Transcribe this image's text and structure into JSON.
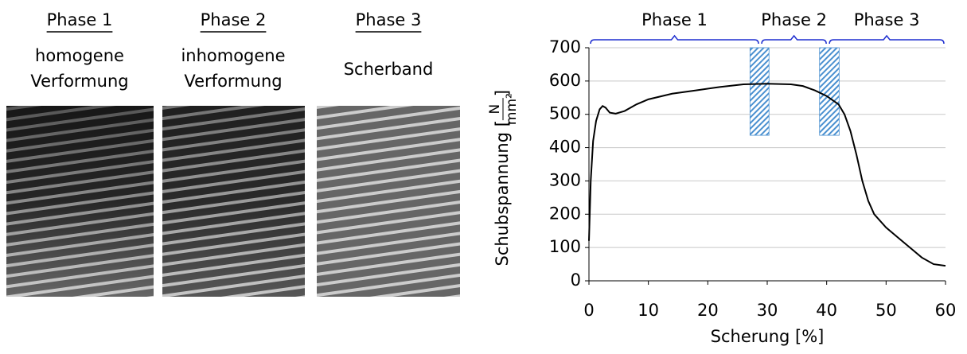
{
  "panels": [
    {
      "title": "Phase 1",
      "caption": [
        "homogene",
        "Verformung"
      ]
    },
    {
      "title": "Phase 2",
      "caption": [
        "inhomogene",
        "Verformung"
      ]
    },
    {
      "title": "Phase 3",
      "caption": [
        "Scherband"
      ]
    }
  ],
  "chart_data": {
    "type": "line",
    "xlabel": "Scherung [%]",
    "ylabel": [
      "Schubspannung [",
      "N",
      "mm²",
      "]"
    ],
    "xlim": [
      0,
      60
    ],
    "xticks": [
      0,
      10,
      20,
      30,
      40,
      50,
      60
    ],
    "ylim": [
      0,
      700
    ],
    "yticks": [
      0,
      100,
      200,
      300,
      400,
      500,
      600,
      700
    ],
    "grid": true,
    "series": [
      {
        "color": "#000000",
        "x": [
          0,
          0.3,
          0.7,
          1.2,
          1.8,
          2.3,
          2.8,
          3.5,
          4.5,
          6,
          8,
          10,
          14,
          18,
          22,
          26,
          30,
          34,
          36,
          38,
          40,
          42,
          43,
          44,
          45,
          46,
          47,
          48,
          50,
          52,
          54,
          56,
          58,
          60
        ],
        "values": [
          120,
          300,
          420,
          480,
          515,
          525,
          520,
          505,
          502,
          510,
          530,
          545,
          562,
          572,
          582,
          590,
          592,
          590,
          585,
          572,
          555,
          530,
          500,
          450,
          380,
          300,
          240,
          200,
          160,
          130,
          100,
          70,
          50,
          45
        ]
      }
    ],
    "phases": [
      {
        "label": "Phase 1",
        "x": [
          0,
          28.8
        ]
      },
      {
        "label": "Phase 2",
        "x": [
          28.8,
          40.2
        ]
      },
      {
        "label": "Phase 3",
        "x": [
          40.2,
          60
        ]
      }
    ],
    "phase_color": "#1f2fd0",
    "bands": [
      {
        "x": [
          27.1,
          30.3
        ],
        "y": [
          437,
          700
        ]
      },
      {
        "x": [
          38.8,
          42.1
        ],
        "y": [
          437,
          700
        ]
      }
    ],
    "band_color": "#4a90d0"
  }
}
